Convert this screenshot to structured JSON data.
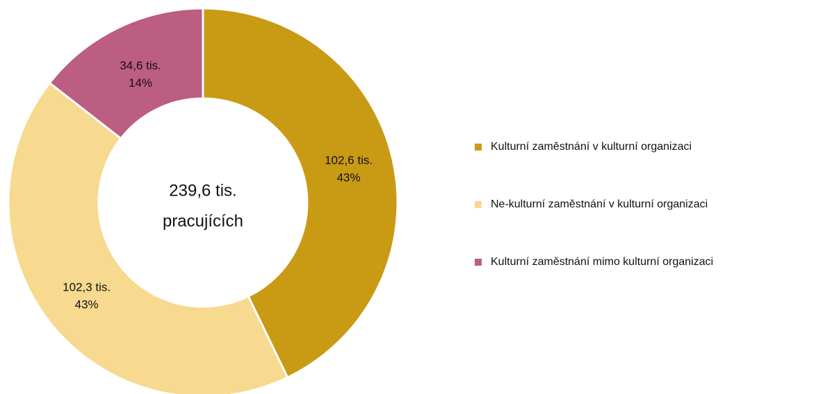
{
  "chart_data": {
    "type": "donut",
    "center_label": [
      "239,6 tis.",
      "pracujících"
    ],
    "categories": [
      "Kulturní zaměstnání v kulturní organizaci",
      "Ne-kulturní zaměstnání v kulturní organizaci",
      "Kulturní zaměstnání mimo kulturní organizaci"
    ],
    "values": [
      102.6,
      102.3,
      34.6
    ],
    "value_labels": [
      "102,6 tis.",
      "102,3 tis.",
      "34,6 tis."
    ],
    "percents": [
      43,
      43,
      14
    ],
    "percent_labels": [
      "43%",
      "43%",
      "14%"
    ],
    "colors": [
      "#c99a14",
      "#f7d98f",
      "#bc5d82"
    ],
    "legend": "right"
  }
}
